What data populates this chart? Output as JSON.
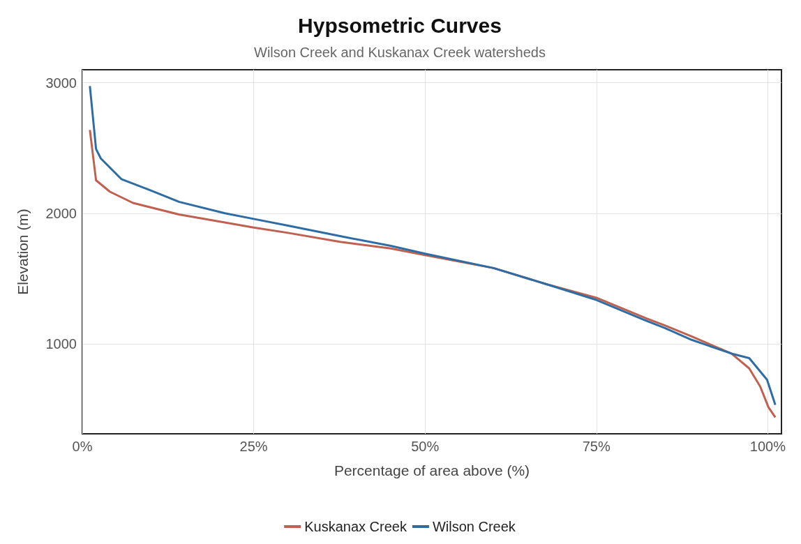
{
  "chart_data": {
    "type": "line",
    "title": "Hypsometric Curves",
    "subtitle": "Wilson Creek and Kuskanax Creek watersheds",
    "xlabel": "Percentage of area above (%)",
    "ylabel": "Elevation (m)",
    "xlim": [
      0,
      102
    ],
    "xticks": [
      {
        "value": 0,
        "label": "0%"
      },
      {
        "value": 25,
        "label": "25%"
      },
      {
        "value": 50,
        "label": "50%"
      },
      {
        "value": 75,
        "label": "75%"
      },
      {
        "value": 100,
        "label": "100%"
      }
    ],
    "ylim": [
      310,
      3100
    ],
    "yticks": [
      1000,
      2000,
      3000
    ],
    "grid": true,
    "legend": "bottom",
    "marker": "none",
    "line_style": "solid",
    "series": [
      {
        "name": "Kuskanax Creek",
        "color": "#c0604f",
        "x": [
          1.1,
          2.0,
          4.0,
          7.4,
          14.1,
          20.8,
          25,
          30,
          37.6,
          45,
          50,
          60,
          67.8,
          75,
          82.2,
          85,
          88.9,
          94.7,
          97.3,
          98.9,
          100.1,
          101.1
        ],
        "values": [
          2638,
          2253,
          2166,
          2079,
          1991,
          1930,
          1891,
          1850,
          1781,
          1730,
          1680,
          1580,
          1455,
          1353,
          1196,
          1140,
          1056,
          925,
          811,
          672,
          514,
          436
        ]
      },
      {
        "name": "Wilson Creek",
        "color": "#2e6da4",
        "x": [
          1.1,
          2.0,
          2.7,
          5.7,
          10,
          14.1,
          20.8,
          25,
          30,
          37.6,
          45,
          50,
          60,
          67.8,
          75,
          82.2,
          85,
          88.9,
          94.7,
          97.3,
          99.9,
          101.1
        ],
        "values": [
          2975,
          2493,
          2420,
          2262,
          2175,
          2088,
          2000,
          1957,
          1905,
          1825,
          1750,
          1690,
          1580,
          1455,
          1336,
          1178,
          1120,
          1030,
          925,
          890,
          724,
          532
        ]
      }
    ]
  }
}
